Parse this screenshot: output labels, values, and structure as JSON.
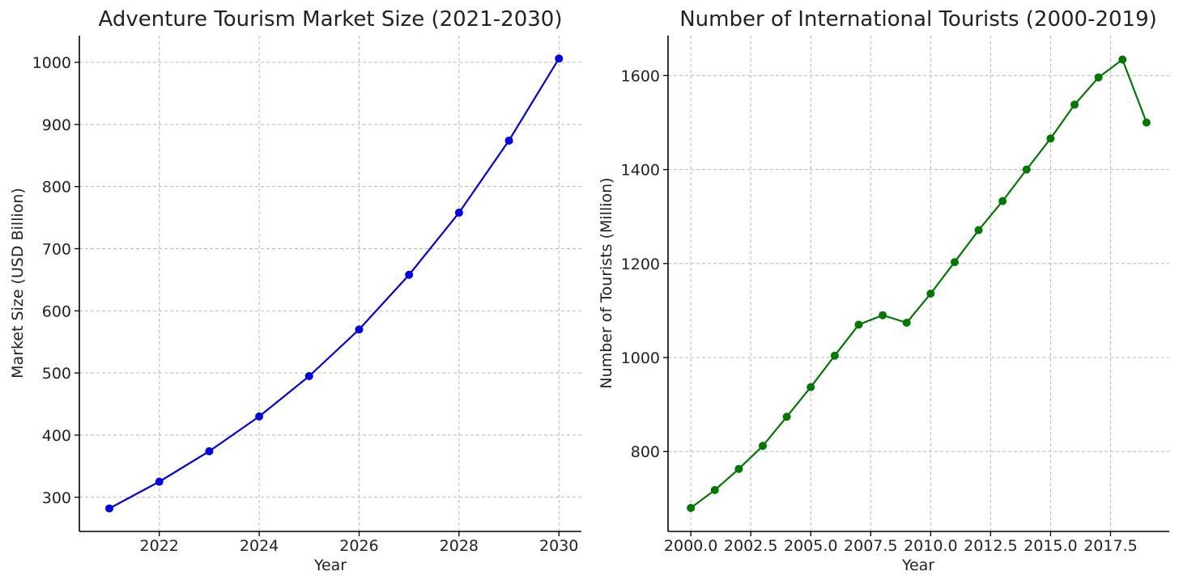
{
  "chart_data": [
    {
      "type": "line",
      "title": "Adventure Tourism Market Size (2021-2030)",
      "xlabel": "Year",
      "ylabel": "Market Size (USD Billion)",
      "xlim": [
        2020.4,
        2030.45
      ],
      "ylim": [
        245,
        1043
      ],
      "xticks": [
        2022,
        2024,
        2026,
        2028,
        2030
      ],
      "xtick_labels": [
        "2022",
        "2024",
        "2026",
        "2028",
        "2030"
      ],
      "yticks": [
        300,
        400,
        500,
        600,
        700,
        800,
        900,
        1000
      ],
      "ytick_labels": [
        "300",
        "400",
        "500",
        "600",
        "700",
        "800",
        "900",
        "1000"
      ],
      "grid": true,
      "color": "#0000e6",
      "series": [
        {
          "x": [
            2021,
            2022,
            2023,
            2024,
            2025,
            2026,
            2027,
            2028,
            2029,
            2030
          ],
          "y": [
            282,
            325,
            374,
            430,
            495,
            570,
            658,
            758,
            874,
            1006
          ]
        }
      ]
    },
    {
      "type": "line",
      "title": "Number of International Tourists (2000-2019)",
      "xlabel": "Year",
      "ylabel": "Number of Tourists (Million)",
      "xlim": [
        1999.05,
        2019.95
      ],
      "ylim": [
        630,
        1685
      ],
      "xticks": [
        2000,
        2002.5,
        2005,
        2007.5,
        2010,
        2012.5,
        2015,
        2017.5
      ],
      "xtick_labels": [
        "2000.0",
        "2002.5",
        "2005.0",
        "2007.5",
        "2010.0",
        "2012.5",
        "2015.0",
        "2017.5"
      ],
      "yticks": [
        800,
        1000,
        1200,
        1400,
        1600
      ],
      "ytick_labels": [
        "800",
        "1000",
        "1200",
        "1400",
        "1600"
      ],
      "grid": true,
      "color": "#007800",
      "series": [
        {
          "x": [
            2000,
            2001,
            2002,
            2003,
            2004,
            2005,
            2006,
            2007,
            2008,
            2009,
            2010,
            2011,
            2012,
            2013,
            2014,
            2015,
            2016,
            2017,
            2018,
            2019
          ],
          "y": [
            680,
            718,
            763,
            812,
            874,
            937,
            1004,
            1070,
            1090,
            1074,
            1136,
            1203,
            1271,
            1333,
            1400,
            1466,
            1538,
            1596,
            1634,
            1500
          ]
        }
      ]
    }
  ]
}
